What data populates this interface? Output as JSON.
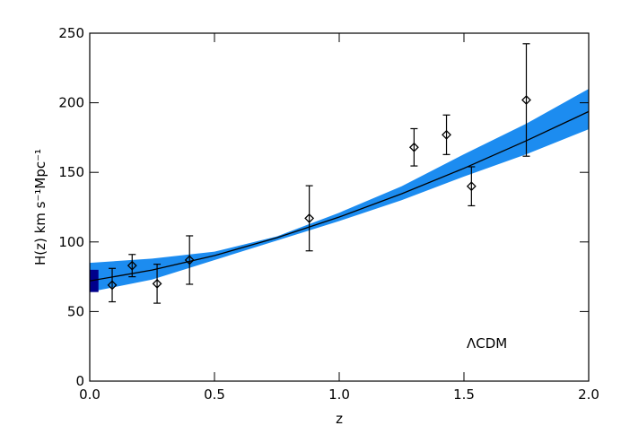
{
  "chart_data": {
    "type": "scatter",
    "xlabel": "z",
    "ylabel": "H(z) km s⁻¹Mpc⁻¹",
    "annotation": "ΛCDM",
    "xlim": [
      0,
      2.0
    ],
    "ylim": [
      0,
      250
    ],
    "xticks": [
      {
        "value": 0,
        "label": "0.0"
      },
      {
        "value": 0.5,
        "label": "0.5"
      },
      {
        "value": 1.0,
        "label": "1.0"
      },
      {
        "value": 1.5,
        "label": "1.5"
      },
      {
        "value": 2.0,
        "label": "2.0"
      }
    ],
    "yticks": [
      0,
      50,
      100,
      150,
      200,
      250
    ],
    "band": {
      "color": "#1c8cf0",
      "x": [
        0,
        0.25,
        0.5,
        0.75,
        1.0,
        1.25,
        1.5,
        1.75,
        2.0
      ],
      "upper": [
        85,
        88,
        93,
        104,
        121,
        140,
        163,
        185,
        210
      ],
      "lower": [
        64,
        73,
        87,
        101,
        115,
        130,
        147,
        163,
        181
      ]
    },
    "h0_box": {
      "color": "#00008b",
      "x": [
        0,
        0.035
      ],
      "y": [
        64,
        80
      ]
    },
    "model": {
      "color": "#000000",
      "x": [
        0,
        0.25,
        0.5,
        0.75,
        1.0,
        1.25,
        1.5,
        1.75,
        2.0
      ],
      "values": [
        72,
        79.8,
        90.2,
        103.0,
        117.9,
        134.6,
        152.9,
        172.7,
        193.7
      ]
    },
    "points": {
      "color": "#000000",
      "x": [
        0.09,
        0.17,
        0.27,
        0.4,
        0.88,
        1.3,
        1.43,
        1.53,
        1.75
      ],
      "values": [
        69,
        83,
        70,
        87,
        117,
        168,
        177,
        140,
        202
      ],
      "errors": [
        12,
        8,
        14,
        17.4,
        23.4,
        13.4,
        14.2,
        14,
        40.4
      ]
    }
  }
}
